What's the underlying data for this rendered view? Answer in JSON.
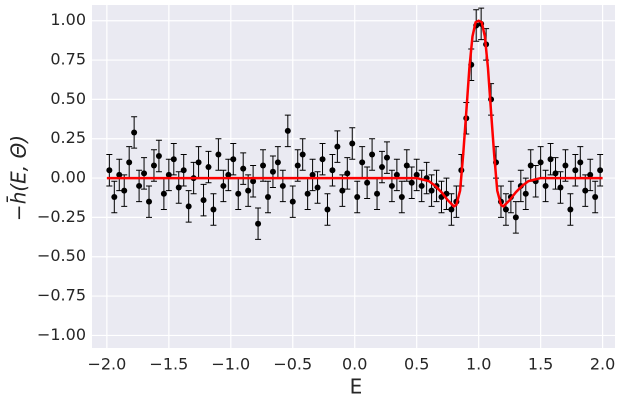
{
  "chart_data": {
    "type": "scatter",
    "xlabel": "E",
    "ylabel": "−h̄(E, Θ)",
    "xlim": [
      -2.12,
      2.1
    ],
    "ylim": [
      -1.08,
      1.1
    ],
    "xticks": [
      {
        "value": -2,
        "label": "−2.0"
      },
      {
        "value": -1.5,
        "label": "−1.5"
      },
      {
        "value": -1,
        "label": "−1.0"
      },
      {
        "value": -0.5,
        "label": "−0.5"
      },
      {
        "value": 0,
        "label": "0.0"
      },
      {
        "value": 0.5,
        "label": "0.5"
      },
      {
        "value": 1,
        "label": "1.0"
      },
      {
        "value": 1.5,
        "label": "1.5"
      },
      {
        "value": 2,
        "label": "2.0"
      }
    ],
    "yticks": [
      {
        "value": -1,
        "label": "−1.00"
      },
      {
        "value": -0.75,
        "label": "−0.75"
      },
      {
        "value": -0.5,
        "label": "−0.50"
      },
      {
        "value": -0.25,
        "label": "−0.25"
      },
      {
        "value": 0,
        "label": "0.00"
      },
      {
        "value": 0.25,
        "label": "0.25"
      },
      {
        "value": 0.5,
        "label": "0.50"
      },
      {
        "value": 0.75,
        "label": "0.75"
      },
      {
        "value": 1,
        "label": "1.00"
      }
    ],
    "grid": true,
    "series": [
      {
        "type": "scatter",
        "color": "#000000",
        "error": 0.1,
        "x": [
          -1.98,
          -1.94,
          -1.9,
          -1.86,
          -1.82,
          -1.78,
          -1.74,
          -1.7,
          -1.66,
          -1.62,
          -1.58,
          -1.54,
          -1.5,
          -1.46,
          -1.42,
          -1.38,
          -1.34,
          -1.3,
          -1.26,
          -1.22,
          -1.18,
          -1.14,
          -1.1,
          -1.06,
          -1.02,
          -0.98,
          -0.94,
          -0.9,
          -0.86,
          -0.82,
          -0.78,
          -0.74,
          -0.7,
          -0.66,
          -0.62,
          -0.58,
          -0.54,
          -0.5,
          -0.46,
          -0.42,
          -0.38,
          -0.34,
          -0.3,
          -0.26,
          -0.22,
          -0.18,
          -0.14,
          -0.1,
          -0.06,
          -0.02,
          0.02,
          0.06,
          0.1,
          0.14,
          0.18,
          0.22,
          0.26,
          0.3,
          0.34,
          0.38,
          0.42,
          0.46,
          0.5,
          0.54,
          0.58,
          0.62,
          0.66,
          0.7,
          0.74,
          0.78,
          0.82,
          0.86,
          0.9,
          0.94,
          0.98,
          1.02,
          1.06,
          1.1,
          1.14,
          1.18,
          1.22,
          1.26,
          1.3,
          1.34,
          1.38,
          1.42,
          1.46,
          1.5,
          1.54,
          1.58,
          1.62,
          1.66,
          1.7,
          1.74,
          1.78,
          1.82,
          1.86,
          1.9,
          1.94,
          1.98
        ],
        "values": [
          0.05,
          -0.12,
          0.02,
          -0.08,
          0.1,
          0.29,
          -0.05,
          0.03,
          -0.15,
          0.08,
          0.14,
          -0.1,
          0.02,
          0.12,
          -0.06,
          0.05,
          -0.18,
          0.0,
          0.1,
          -0.14,
          0.07,
          -0.2,
          0.15,
          -0.05,
          0.02,
          0.12,
          -0.1,
          0.06,
          -0.08,
          -0.02,
          -0.29,
          0.08,
          -0.12,
          0.04,
          0.1,
          -0.05,
          0.3,
          -0.15,
          0.08,
          0.15,
          -0.1,
          0.02,
          -0.06,
          0.12,
          -0.2,
          0.05,
          0.2,
          -0.08,
          0.03,
          0.22,
          -0.12,
          0.1,
          -0.03,
          0.15,
          -0.1,
          0.07,
          0.13,
          -0.05,
          0.02,
          -0.12,
          0.08,
          -0.03,
          0.02,
          -0.05,
          0.0,
          -0.08,
          -0.05,
          -0.12,
          -0.1,
          -0.2,
          -0.15,
          0.05,
          0.38,
          0.72,
          0.97,
          0.98,
          0.85,
          0.5,
          0.1,
          -0.15,
          -0.2,
          -0.12,
          -0.25,
          -0.05,
          -0.1,
          0.08,
          -0.02,
          0.1,
          -0.05,
          0.12,
          0.03,
          -0.06,
          0.08,
          -0.2,
          0.05,
          0.1,
          -0.08,
          0.02,
          -0.12,
          0.05
        ]
      },
      {
        "type": "line",
        "color": "#ff0000",
        "x": [
          -2,
          -1,
          0,
          0.5,
          0.55,
          0.6,
          0.65,
          0.7,
          0.75,
          0.8,
          0.82,
          0.85,
          0.875,
          0.9,
          0.925,
          0.95,
          0.975,
          1,
          1.025,
          1.05,
          1.075,
          1.1,
          1.125,
          1.15,
          1.18,
          1.2,
          1.25,
          1.3,
          1.35,
          1.4,
          1.45,
          1.5,
          2
        ],
        "values": [
          0,
          0,
          0,
          0,
          -0.01,
          -0.02,
          -0.05,
          -0.09,
          -0.14,
          -0.18,
          -0.17,
          -0.08,
          0.15,
          0.42,
          0.7,
          0.9,
          0.99,
          1,
          0.99,
          0.9,
          0.7,
          0.42,
          0.15,
          -0.08,
          -0.17,
          -0.18,
          -0.14,
          -0.09,
          -0.05,
          -0.02,
          -0.01,
          0,
          0
        ]
      }
    ]
  }
}
